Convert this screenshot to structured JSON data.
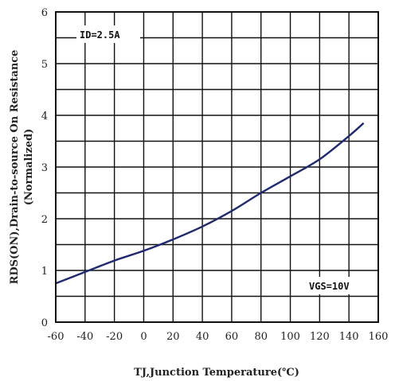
{
  "chart_data": {
    "type": "line",
    "xlabel": "TJ,Junction Temperature(℃)",
    "ylabel_line1": "RDS(ON),Drain-to-source On Resistance",
    "ylabel_line2": "(Normalized)",
    "xlim": [
      -60,
      160
    ],
    "ylim": [
      0,
      6
    ],
    "x_ticks": [
      "-60",
      "-40",
      "-20",
      "0",
      "20",
      "40",
      "60",
      "80",
      "100",
      "120",
      "140",
      "160"
    ],
    "y_ticks": [
      "0",
      "1",
      "2",
      "3",
      "4",
      "5",
      "6"
    ],
    "grid": true,
    "annotations": [
      {
        "text": "ID=2.5A",
        "position": "top-left"
      },
      {
        "text": "VGS=10V",
        "position": "bottom-right"
      }
    ],
    "series": [
      {
        "x": [
          -60,
          -40,
          -20,
          0,
          20,
          40,
          60,
          80,
          100,
          120,
          140,
          150
        ],
        "y": [
          0.75,
          0.97,
          1.19,
          1.38,
          1.6,
          1.85,
          2.15,
          2.5,
          2.82,
          3.15,
          3.6,
          3.85
        ]
      }
    ]
  }
}
